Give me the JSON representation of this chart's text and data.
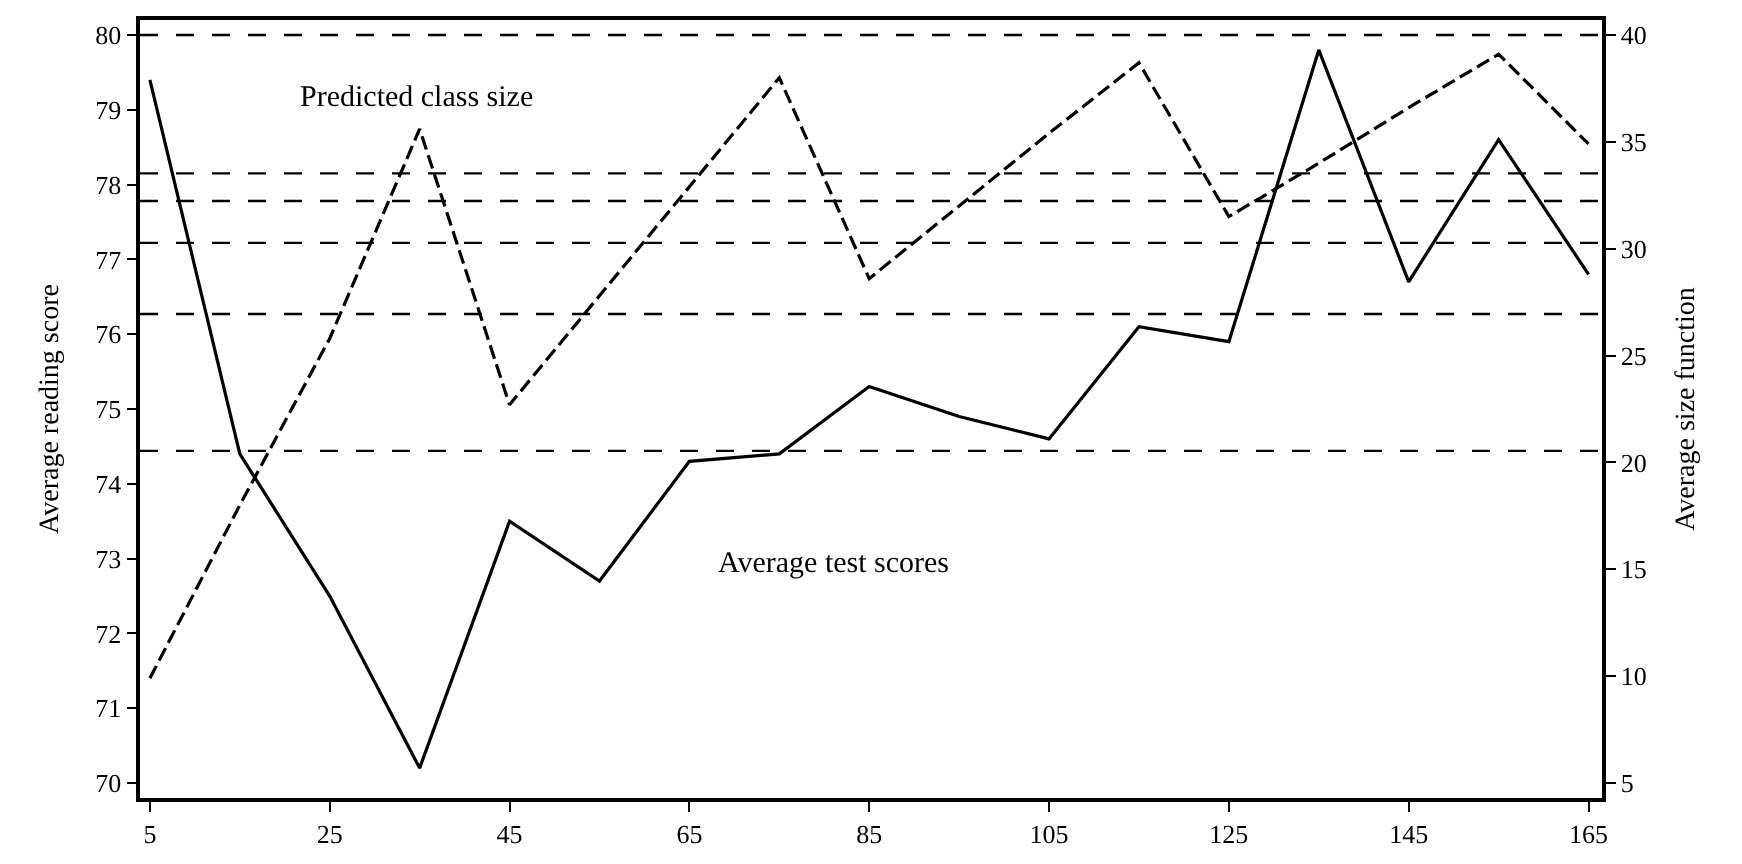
{
  "chart_data": {
    "type": "line",
    "x": [
      5,
      15,
      25,
      35,
      45,
      55,
      65,
      75,
      85,
      95,
      105,
      115,
      125,
      135,
      145,
      155,
      165
    ],
    "series": [
      {
        "color": "#000000",
        "line_style": "solid",
        "values": [
          79.4,
          74.4,
          72.5,
          70.2,
          73.5,
          72.7,
          74.3,
          74.4,
          75.3,
          74.9,
          74.6,
          76.1,
          75.9,
          79.8,
          76.7,
          78.6,
          76.8
        ]
      },
      {
        "color": "#000000",
        "line_style": "dashed",
        "axis": "y2",
        "values": [
          9.9,
          18.0,
          25.8,
          35.6,
          22.7,
          27.8,
          32.9,
          38.0,
          28.6,
          32.0,
          35.4,
          38.7,
          31.5,
          34.0,
          36.6,
          39.1,
          34.9
        ]
      }
    ],
    "ylabel": "Average reading score",
    "y2label": "Average size function",
    "xlim": [
      3.9,
      166.5
    ],
    "xticks": [
      5,
      25,
      45,
      65,
      85,
      105,
      125,
      145,
      165
    ],
    "ylim": [
      69.8,
      80.2
    ],
    "yticks": [
      70,
      71,
      72,
      73,
      74,
      75,
      76,
      77,
      78,
      79,
      80
    ],
    "y2lim": [
      4.3,
      40.7
    ],
    "y2ticks": [
      5,
      10,
      15,
      20,
      25,
      30,
      35,
      40
    ],
    "ref_lines": [
      {
        "axis": "y",
        "value": 80,
        "line_style": "dashed"
      },
      {
        "axis": "y",
        "value": 78.15,
        "line_style": "dashed"
      },
      {
        "axis": "y",
        "value": 77.78,
        "line_style": "dashed"
      },
      {
        "axis": "y",
        "value": 77.22,
        "line_style": "dashed"
      },
      {
        "axis": "y",
        "value": 76.27,
        "line_style": "dashed"
      },
      {
        "axis": "y",
        "value": 74.44,
        "line_style": "dashed"
      }
    ],
    "annotations": [
      "Predicted class size",
      "Average test scores"
    ],
    "marker": "none"
  }
}
